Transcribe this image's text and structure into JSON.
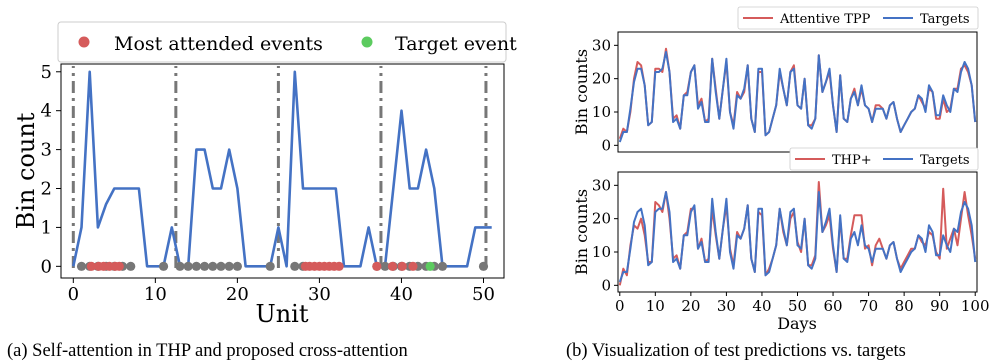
{
  "captions": {
    "left": "(a) Self-attention in THP and proposed cross-attention",
    "right": "(b) Visualization of test predictions vs. targets"
  },
  "chart_data": [
    {
      "type": "line",
      "xlabel": "Unit",
      "ylabel": "Bin count",
      "xlim": [
        -1.5,
        52.5
      ],
      "ylim": [
        -0.3,
        5.2
      ],
      "xticks": [
        0,
        10,
        20,
        30,
        40,
        50
      ],
      "yticks": [
        0,
        1,
        2,
        3,
        4,
        5
      ],
      "grid": false,
      "legend": {
        "placement": "top",
        "entries": [
          {
            "label": "Most attended events",
            "color": "#d55b5b"
          },
          {
            "label": "Target event",
            "color": "#5ccb5f"
          }
        ]
      },
      "line_color": "#4472c4",
      "dashdot_lines_x": [
        0,
        12.5,
        25,
        37.5,
        50.3
      ],
      "series": [
        {
          "x": [
            0,
            1,
            2,
            3,
            4,
            5,
            6,
            7,
            8,
            9,
            10,
            11,
            12,
            13,
            14,
            15,
            16,
            17,
            18,
            19,
            20,
            21,
            22,
            23,
            24,
            25,
            26,
            27,
            28,
            29,
            30,
            31,
            32,
            33,
            34,
            35,
            36,
            37,
            38,
            39,
            40,
            41,
            42,
            43,
            44,
            45,
            46,
            47,
            48,
            49,
            50,
            51
          ],
          "values": [
            0,
            1,
            5,
            1,
            1.6,
            2,
            2,
            2,
            2,
            0,
            0,
            0,
            1,
            0,
            0,
            3,
            3,
            2,
            2,
            3,
            2,
            0,
            0,
            0,
            0,
            1,
            0,
            5,
            2,
            2,
            2,
            2,
            2,
            0,
            0,
            0,
            1,
            0,
            0,
            2,
            4,
            2,
            2,
            3,
            2,
            0,
            0,
            0,
            0,
            1,
            1,
            1
          ]
        }
      ],
      "grey_events_x": [
        1,
        2,
        3,
        4,
        5,
        6,
        7,
        11,
        13,
        14,
        15,
        16,
        17,
        18,
        19,
        20,
        24,
        27,
        28,
        37,
        38,
        39,
        40,
        41,
        42,
        43,
        44,
        45,
        50
      ],
      "most_attended_events_x": [
        2.2,
        3.1,
        3.7,
        4.4,
        5.1,
        5.6,
        28.3,
        28.8,
        29.4,
        30.0,
        30.6,
        31.2,
        31.8,
        32.4,
        37.0,
        38.9,
        40.1,
        41.4
      ],
      "target_events_x": [
        43.5
      ]
    },
    {
      "type": "line",
      "xlabel": "",
      "ylabel": "Bin counts",
      "xlim": [
        -0.5,
        100.5
      ],
      "ylim": [
        -2,
        34
      ],
      "xticks": [],
      "yticks": [
        0,
        10,
        20,
        30
      ],
      "grid": false,
      "legend": {
        "placement": "top-right"
      },
      "series": [
        {
          "name": "Attentive TPP",
          "color": "#d55b5b",
          "values": [
            2,
            5,
            4,
            10,
            20,
            25,
            24,
            18,
            6,
            7,
            23,
            23,
            22,
            29,
            22,
            8,
            9,
            5,
            15,
            16,
            22,
            24,
            12,
            14,
            7,
            8,
            26,
            17,
            8,
            17,
            25,
            10,
            6,
            16,
            14,
            16,
            24,
            8,
            4,
            22,
            22,
            3,
            4,
            8,
            12,
            22,
            17,
            12,
            22,
            24,
            12,
            11,
            20,
            6,
            6,
            8,
            27,
            16,
            19,
            22,
            12,
            4,
            21,
            8,
            7,
            14,
            17,
            12,
            17,
            12,
            11,
            7,
            12,
            12,
            11,
            8,
            12,
            13,
            8,
            4,
            6,
            8,
            10,
            11,
            15,
            13,
            11,
            17,
            16,
            8,
            8,
            14,
            10,
            11,
            17,
            17,
            23,
            24,
            22,
            18,
            7
          ]
        },
        {
          "name": "Targets",
          "color": "#4472c4",
          "values": [
            1,
            4,
            4,
            11,
            19,
            23,
            23,
            18,
            6,
            7,
            22,
            22,
            23,
            28,
            22,
            7,
            8,
            5,
            15,
            15,
            22,
            24,
            11,
            13,
            7,
            7,
            26,
            16,
            8,
            17,
            26,
            10,
            5,
            15,
            14,
            17,
            24,
            8,
            4,
            23,
            23,
            3,
            4,
            8,
            12,
            23,
            17,
            12,
            22,
            23,
            12,
            11,
            20,
            6,
            5,
            8,
            27,
            16,
            19,
            23,
            12,
            4,
            21,
            8,
            7,
            14,
            16,
            12,
            18,
            12,
            11,
            7,
            11,
            11,
            11,
            8,
            12,
            13,
            8,
            4,
            6,
            8,
            10,
            11,
            15,
            14,
            10,
            18,
            16,
            9,
            9,
            15,
            12,
            10,
            17,
            16,
            22,
            25,
            23,
            18,
            7
          ]
        }
      ]
    },
    {
      "type": "line",
      "xlabel": "Days",
      "ylabel": "Bin counts",
      "xlim": [
        -0.5,
        100.5
      ],
      "ylim": [
        -2,
        34
      ],
      "xticks": [
        0,
        10,
        20,
        30,
        40,
        50,
        60,
        70,
        80,
        90,
        100
      ],
      "yticks": [
        0,
        10,
        20,
        30
      ],
      "grid": false,
      "legend": {
        "placement": "top-right"
      },
      "series": [
        {
          "name": "THP+",
          "color": "#d55b5b",
          "values": [
            0,
            5,
            3,
            12,
            18,
            17,
            20,
            15,
            7,
            7,
            25,
            24,
            22,
            28,
            20,
            8,
            9,
            5,
            15,
            16,
            23,
            23,
            11,
            14,
            7,
            8,
            23,
            15,
            8,
            17,
            24,
            11,
            6,
            16,
            14,
            17,
            24,
            8,
            4,
            22,
            21,
            3,
            5,
            8,
            12,
            23,
            16,
            12,
            20,
            22,
            13,
            10,
            20,
            6,
            6,
            9,
            31,
            16,
            18,
            21,
            11,
            4,
            20,
            8,
            8,
            15,
            21,
            21,
            21,
            11,
            12,
            6,
            12,
            14,
            11,
            8,
            12,
            13,
            8,
            5,
            7,
            9,
            11,
            11,
            15,
            13,
            12,
            16,
            15,
            10,
            8,
            29,
            11,
            14,
            17,
            12,
            20,
            28,
            21,
            15,
            8
          ]
        },
        {
          "name": "Targets",
          "color": "#4472c4",
          "values": [
            1,
            4,
            4,
            11,
            19,
            22,
            23,
            18,
            6,
            7,
            22,
            23,
            23,
            28,
            22,
            7,
            8,
            5,
            15,
            15,
            22,
            24,
            11,
            13,
            7,
            7,
            26,
            16,
            8,
            17,
            26,
            10,
            5,
            15,
            14,
            17,
            24,
            8,
            4,
            23,
            23,
            3,
            4,
            8,
            12,
            23,
            17,
            12,
            22,
            23,
            12,
            11,
            20,
            6,
            5,
            8,
            28,
            16,
            19,
            23,
            12,
            4,
            21,
            8,
            7,
            14,
            16,
            12,
            18,
            12,
            11,
            7,
            11,
            11,
            11,
            8,
            12,
            13,
            8,
            4,
            6,
            8,
            10,
            11,
            15,
            14,
            10,
            18,
            16,
            9,
            9,
            15,
            12,
            10,
            17,
            16,
            22,
            25,
            23,
            18,
            7
          ]
        }
      ]
    }
  ]
}
